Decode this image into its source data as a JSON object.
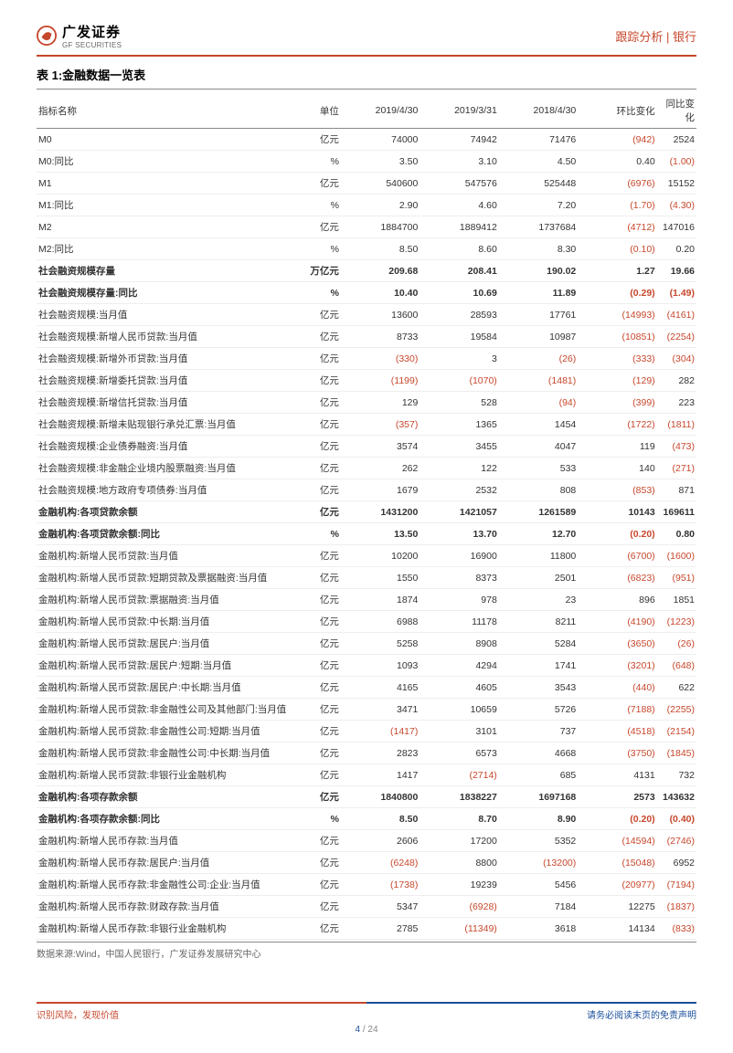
{
  "header": {
    "logo_cn": "广发证券",
    "logo_en": "GF SECURITIES",
    "breadcrumb": "跟踪分析 | 银行"
  },
  "table": {
    "title": "表 1:金融数据一览表",
    "columns": [
      "指标名称",
      "单位",
      "2019/4/30",
      "2019/3/31",
      "2018/4/30",
      "环比变化",
      "同比变化"
    ],
    "rows": [
      {
        "b": 0,
        "c": [
          "M0",
          "亿元",
          "74000",
          "74942",
          "71476",
          "(942)",
          "2524"
        ]
      },
      {
        "b": 0,
        "c": [
          "M0:同比",
          "%",
          "3.50",
          "3.10",
          "4.50",
          "0.40",
          "(1.00)"
        ]
      },
      {
        "b": 0,
        "c": [
          "M1",
          "亿元",
          "540600",
          "547576",
          "525448",
          "(6976)",
          "15152"
        ]
      },
      {
        "b": 0,
        "c": [
          "M1:同比",
          "%",
          "2.90",
          "4.60",
          "7.20",
          "(1.70)",
          "(4.30)"
        ]
      },
      {
        "b": 0,
        "c": [
          "M2",
          "亿元",
          "1884700",
          "1889412",
          "1737684",
          "(4712)",
          "147016"
        ]
      },
      {
        "b": 0,
        "c": [
          "M2:同比",
          "%",
          "8.50",
          "8.60",
          "8.30",
          "(0.10)",
          "0.20"
        ]
      },
      {
        "b": 1,
        "c": [
          "社会融资规模存量",
          "万亿元",
          "209.68",
          "208.41",
          "190.02",
          "1.27",
          "19.66"
        ]
      },
      {
        "b": 1,
        "c": [
          "社会融资规模存量:同比",
          "%",
          "10.40",
          "10.69",
          "11.89",
          "(0.29)",
          "(1.49)"
        ]
      },
      {
        "b": 0,
        "c": [
          "社会融资规模:当月值",
          "亿元",
          "13600",
          "28593",
          "17761",
          "(14993)",
          "(4161)"
        ]
      },
      {
        "b": 0,
        "c": [
          "社会融资规模:新增人民币贷款:当月值",
          "亿元",
          "8733",
          "19584",
          "10987",
          "(10851)",
          "(2254)"
        ]
      },
      {
        "b": 0,
        "c": [
          "社会融资规模:新增外币贷款:当月值",
          "亿元",
          "(330)",
          "3",
          "(26)",
          "(333)",
          "(304)"
        ]
      },
      {
        "b": 0,
        "c": [
          "社会融资规模:新增委托贷款:当月值",
          "亿元",
          "(1199)",
          "(1070)",
          "(1481)",
          "(129)",
          "282"
        ]
      },
      {
        "b": 0,
        "c": [
          "社会融资规模:新增信托贷款:当月值",
          "亿元",
          "129",
          "528",
          "(94)",
          "(399)",
          "223"
        ]
      },
      {
        "b": 0,
        "c": [
          "社会融资规模:新增未贴现银行承兑汇票:当月值",
          "亿元",
          "(357)",
          "1365",
          "1454",
          "(1722)",
          "(1811)"
        ]
      },
      {
        "b": 0,
        "c": [
          "社会融资规模:企业债券融资:当月值",
          "亿元",
          "3574",
          "3455",
          "4047",
          "119",
          "(473)"
        ]
      },
      {
        "b": 0,
        "c": [
          "社会融资规模:非金融企业境内股票融资:当月值",
          "亿元",
          "262",
          "122",
          "533",
          "140",
          "(271)"
        ]
      },
      {
        "b": 0,
        "c": [
          "社会融资规模:地方政府专项债券:当月值",
          "亿元",
          "1679",
          "2532",
          "808",
          "(853)",
          "871"
        ]
      },
      {
        "b": 1,
        "c": [
          "金融机构:各项贷款余额",
          "亿元",
          "1431200",
          "1421057",
          "1261589",
          "10143",
          "169611"
        ]
      },
      {
        "b": 1,
        "c": [
          "金融机构:各项贷款余额:同比",
          "%",
          "13.50",
          "13.70",
          "12.70",
          "(0.20)",
          "0.80"
        ]
      },
      {
        "b": 0,
        "c": [
          "金融机构:新增人民币贷款:当月值",
          "亿元",
          "10200",
          "16900",
          "11800",
          "(6700)",
          "(1600)"
        ]
      },
      {
        "b": 0,
        "c": [
          "金融机构:新增人民币贷款:短期贷款及票据融资:当月值",
          "亿元",
          "1550",
          "8373",
          "2501",
          "(6823)",
          "(951)"
        ]
      },
      {
        "b": 0,
        "c": [
          "金融机构:新增人民币贷款:票据融资:当月值",
          "亿元",
          "1874",
          "978",
          "23",
          "896",
          "1851"
        ]
      },
      {
        "b": 0,
        "c": [
          "金融机构:新增人民币贷款:中长期:当月值",
          "亿元",
          "6988",
          "11178",
          "8211",
          "(4190)",
          "(1223)"
        ]
      },
      {
        "b": 0,
        "c": [
          "金融机构:新增人民币贷款:居民户:当月值",
          "亿元",
          "5258",
          "8908",
          "5284",
          "(3650)",
          "(26)"
        ]
      },
      {
        "b": 0,
        "c": [
          "金融机构:新增人民币贷款:居民户:短期:当月值",
          "亿元",
          "1093",
          "4294",
          "1741",
          "(3201)",
          "(648)"
        ]
      },
      {
        "b": 0,
        "c": [
          "金融机构:新增人民币贷款:居民户:中长期:当月值",
          "亿元",
          "4165",
          "4605",
          "3543",
          "(440)",
          "622"
        ]
      },
      {
        "b": 0,
        "c": [
          "金融机构:新增人民币贷款:非金融性公司及其他部门:当月值",
          "亿元",
          "3471",
          "10659",
          "5726",
          "(7188)",
          "(2255)"
        ]
      },
      {
        "b": 0,
        "c": [
          "金融机构:新增人民币贷款:非金融性公司:短期:当月值",
          "亿元",
          "(1417)",
          "3101",
          "737",
          "(4518)",
          "(2154)"
        ]
      },
      {
        "b": 0,
        "c": [
          "金融机构:新增人民币贷款:非金融性公司:中长期:当月值",
          "亿元",
          "2823",
          "6573",
          "4668",
          "(3750)",
          "(1845)"
        ]
      },
      {
        "b": 0,
        "c": [
          "金融机构:新增人民币贷款:非银行业金融机构",
          "亿元",
          "1417",
          "(2714)",
          "685",
          "4131",
          "732"
        ]
      },
      {
        "b": 1,
        "c": [
          "金融机构:各项存款余额",
          "亿元",
          "1840800",
          "1838227",
          "1697168",
          "2573",
          "143632"
        ]
      },
      {
        "b": 1,
        "c": [
          "金融机构:各项存款余额:同比",
          "%",
          "8.50",
          "8.70",
          "8.90",
          "(0.20)",
          "(0.40)"
        ]
      },
      {
        "b": 0,
        "c": [
          "金融机构:新增人民币存款:当月值",
          "亿元",
          "2606",
          "17200",
          "5352",
          "(14594)",
          "(2746)"
        ]
      },
      {
        "b": 0,
        "c": [
          "金融机构:新增人民币存款:居民户:当月值",
          "亿元",
          "(6248)",
          "8800",
          "(13200)",
          "(15048)",
          "6952"
        ]
      },
      {
        "b": 0,
        "c": [
          "金融机构:新增人民币存款:非金融性公司:企业:当月值",
          "亿元",
          "(1738)",
          "19239",
          "5456",
          "(20977)",
          "(7194)"
        ]
      },
      {
        "b": 0,
        "c": [
          "金融机构:新增人民币存款:财政存款:当月值",
          "亿元",
          "5347",
          "(6928)",
          "7184",
          "12275",
          "(1837)"
        ]
      },
      {
        "b": 0,
        "c": [
          "金融机构:新增人民币存款:非银行业金融机构",
          "亿元",
          "2785",
          "(11349)",
          "3618",
          "14134",
          "(833)"
        ]
      }
    ],
    "footnote": "数据来源:Wind，中国人民银行，广发证券发展研究中心"
  },
  "footer": {
    "left": "识别风险，发现价值",
    "right": "请务必阅读末页的免责声明",
    "page": "4",
    "total": " / 24"
  },
  "colors": {
    "accent": "#c7472c",
    "blue": "#1a4f9c"
  }
}
